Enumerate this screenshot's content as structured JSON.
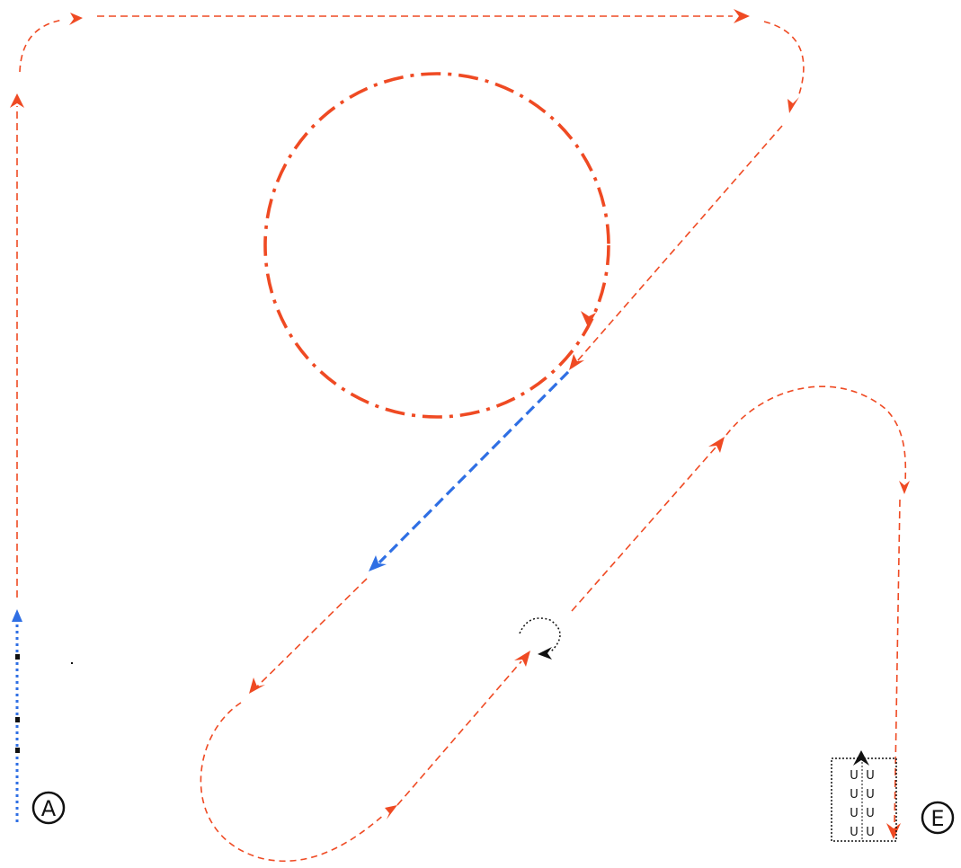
{
  "markers": {
    "start": "A",
    "end": "E"
  },
  "parking_spaces": [
    "U",
    "U",
    "U",
    "U",
    "U",
    "U",
    "U",
    "U"
  ],
  "colors": {
    "route": "#ef4a23",
    "reverse": "#2f6fe4",
    "turn": "#111111",
    "background": "#ffffff"
  },
  "icons": [
    "turn-around-icon",
    "park-arrow-icon"
  ]
}
